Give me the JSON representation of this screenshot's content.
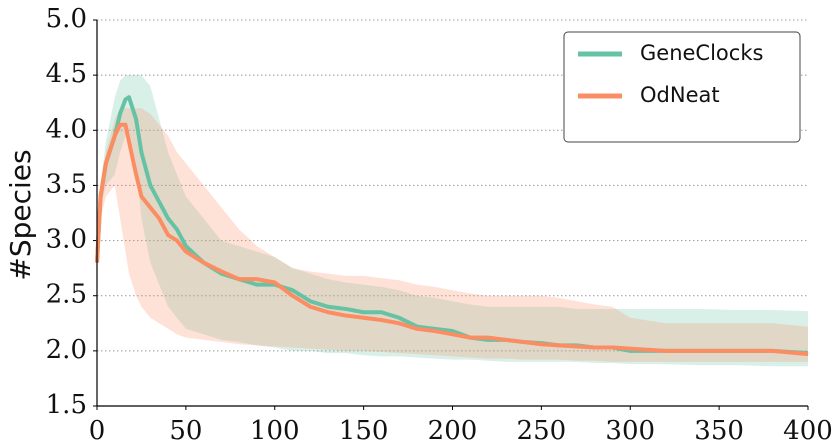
{
  "chart_data": {
    "type": "line",
    "y_label": "#Species",
    "x": [
      0,
      2,
      5,
      10,
      13,
      16,
      18,
      22,
      25,
      30,
      35,
      40,
      45,
      50,
      60,
      70,
      80,
      90,
      100,
      110,
      120,
      130,
      140,
      150,
      160,
      170,
      180,
      190,
      200,
      210,
      220,
      230,
      240,
      250,
      260,
      270,
      280,
      290,
      300,
      320,
      340,
      360,
      380,
      400
    ],
    "series": [
      {
        "name": "GeneClocks",
        "color": "#66c2a5",
        "values": [
          2.8,
          3.4,
          3.7,
          3.95,
          4.15,
          4.28,
          4.3,
          4.1,
          3.8,
          3.5,
          3.35,
          3.2,
          3.1,
          2.95,
          2.8,
          2.7,
          2.65,
          2.6,
          2.6,
          2.55,
          2.45,
          2.4,
          2.38,
          2.35,
          2.35,
          2.3,
          2.22,
          2.2,
          2.18,
          2.12,
          2.1,
          2.1,
          2.08,
          2.07,
          2.05,
          2.05,
          2.03,
          2.03,
          2.0,
          2.0,
          2.0,
          2.0,
          2.0,
          1.98
        ],
        "band_upper": [
          2.8,
          3.5,
          3.9,
          4.3,
          4.45,
          4.5,
          4.5,
          4.5,
          4.5,
          4.4,
          4.1,
          3.8,
          3.6,
          3.4,
          3.2,
          3.0,
          2.95,
          2.9,
          2.85,
          2.75,
          2.7,
          2.65,
          2.62,
          2.6,
          2.58,
          2.55,
          2.5,
          2.48,
          2.45,
          2.42,
          2.4,
          2.4,
          2.4,
          2.4,
          2.4,
          2.38,
          2.38,
          2.38,
          2.38,
          2.38,
          2.38,
          2.37,
          2.37,
          2.36
        ],
        "band_lower": [
          2.8,
          3.3,
          3.5,
          3.6,
          3.8,
          3.95,
          4.0,
          3.7,
          3.2,
          2.8,
          2.6,
          2.4,
          2.3,
          2.2,
          2.15,
          2.1,
          2.08,
          2.05,
          2.03,
          2.0,
          2.0,
          1.98,
          1.98,
          1.96,
          1.95,
          1.95,
          1.94,
          1.93,
          1.92,
          1.92,
          1.91,
          1.9,
          1.9,
          1.9,
          1.9,
          1.9,
          1.89,
          1.89,
          1.88,
          1.88,
          1.87,
          1.87,
          1.86,
          1.86
        ]
      },
      {
        "name": "OdNeat",
        "color": "#fc8d62",
        "values": [
          2.8,
          3.4,
          3.7,
          3.95,
          4.05,
          4.05,
          3.9,
          3.6,
          3.4,
          3.3,
          3.2,
          3.05,
          3.0,
          2.9,
          2.8,
          2.72,
          2.65,
          2.65,
          2.62,
          2.5,
          2.4,
          2.35,
          2.32,
          2.3,
          2.28,
          2.25,
          2.2,
          2.18,
          2.15,
          2.12,
          2.12,
          2.1,
          2.08,
          2.06,
          2.05,
          2.04,
          2.03,
          2.03,
          2.02,
          2.0,
          2.0,
          2.0,
          2.0,
          1.97
        ],
        "band_upper": [
          2.8,
          3.5,
          3.8,
          4.1,
          4.2,
          4.2,
          4.2,
          4.2,
          4.2,
          4.15,
          4.05,
          3.95,
          3.8,
          3.7,
          3.5,
          3.3,
          3.1,
          2.95,
          2.85,
          2.75,
          2.72,
          2.7,
          2.68,
          2.68,
          2.66,
          2.64,
          2.6,
          2.58,
          2.55,
          2.52,
          2.5,
          2.5,
          2.5,
          2.5,
          2.48,
          2.45,
          2.42,
          2.4,
          2.3,
          2.25,
          2.25,
          2.25,
          2.25,
          2.22
        ],
        "band_lower": [
          2.8,
          3.2,
          3.4,
          3.5,
          3.2,
          2.9,
          2.7,
          2.5,
          2.4,
          2.3,
          2.25,
          2.2,
          2.15,
          2.12,
          2.1,
          2.08,
          2.06,
          2.05,
          2.04,
          2.03,
          2.02,
          2.01,
          2.0,
          2.0,
          1.99,
          1.98,
          1.97,
          1.96,
          1.95,
          1.94,
          1.93,
          1.93,
          1.92,
          1.92,
          1.92,
          1.91,
          1.91,
          1.9,
          1.9,
          1.9,
          1.9,
          1.9,
          1.9,
          1.9
        ]
      }
    ],
    "xlim": [
      0,
      400
    ],
    "xticks": [
      0,
      50,
      100,
      150,
      200,
      250,
      300,
      350,
      400
    ],
    "ylim": [
      1.5,
      5.0
    ],
    "yticks": [
      {
        "value": 1.5,
        "label": "1.5"
      },
      {
        "value": 2,
        "label": "2.0"
      },
      {
        "value": 2.5,
        "label": "2.5"
      },
      {
        "value": 3,
        "label": "3.0"
      },
      {
        "value": 3.5,
        "label": "3.5"
      },
      {
        "value": 4,
        "label": "4.0"
      },
      {
        "value": 4.5,
        "label": "4.5"
      },
      {
        "value": 5,
        "label": "5.0"
      }
    ],
    "grid": true,
    "legend": "upper-right"
  }
}
